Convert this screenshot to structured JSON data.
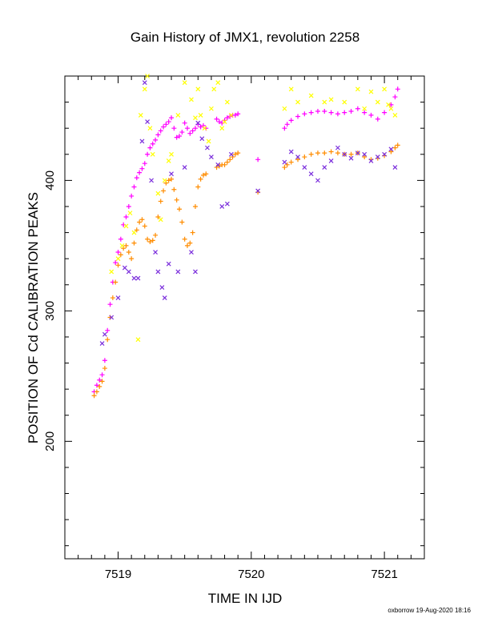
{
  "footer": "oxborrow 19-Aug-2020 18:16",
  "chart_data": {
    "type": "scatter",
    "title": "Gain History of JMX1, revolution 2258",
    "xlabel": "TIME IN IJD",
    "ylabel": "POSITION OF Cd CALIBRATION PEAKS",
    "xlim": [
      7518.6,
      7521.3
    ],
    "ylim": [
      110,
      480
    ],
    "xticks": [
      7519,
      7520,
      7521
    ],
    "yticks": [
      200,
      300,
      400
    ],
    "grid": false,
    "colors": {
      "magenta": "#ff00ff",
      "orange": "#ff8c00",
      "yellow": "#ffff00",
      "purple": "#7b2fdc"
    },
    "series": [
      {
        "color": "magenta",
        "marker": "plus",
        "x": [
          7518.82,
          7518.84,
          7518.86,
          7518.88,
          7518.9,
          7518.92,
          7518.94,
          7518.96,
          7518.98,
          7519.0,
          7519.02,
          7519.04,
          7519.06,
          7519.08,
          7519.1,
          7519.12,
          7519.14,
          7519.16,
          7519.18,
          7519.2,
          7519.22,
          7519.24,
          7519.26,
          7519.28,
          7519.3,
          7519.32,
          7519.34,
          7519.36,
          7519.38,
          7519.4,
          7519.42,
          7519.44,
          7519.46,
          7519.48,
          7519.5,
          7519.52,
          7519.54,
          7519.56,
          7519.58,
          7519.6,
          7519.62,
          7519.64,
          7519.66,
          7519.74,
          7519.76,
          7519.78,
          7519.8,
          7519.82,
          7519.84,
          7519.86,
          7519.88,
          7519.9,
          7520.05,
          7520.25,
          7520.27,
          7520.3,
          7520.35,
          7520.4,
          7520.45,
          7520.5,
          7520.55,
          7520.6,
          7520.65,
          7520.7,
          7520.75,
          7520.8,
          7520.85,
          7520.9,
          7520.95,
          7521.0,
          7521.05,
          7521.08,
          7521.1
        ],
        "y": [
          238,
          243,
          247,
          251,
          262,
          285,
          305,
          322,
          337,
          345,
          355,
          366,
          372,
          380,
          388,
          395,
          402,
          406,
          409,
          413,
          420,
          425,
          428,
          431,
          435,
          438,
          441,
          443,
          445,
          448,
          440,
          433,
          434,
          437,
          444,
          440,
          436,
          438,
          440,
          443,
          441,
          442,
          440,
          447,
          445,
          444,
          446,
          448,
          449,
          450,
          450,
          451,
          416,
          440,
          443,
          446,
          449,
          451,
          452,
          453,
          453,
          452,
          451,
          452,
          453,
          455,
          452,
          450,
          447,
          452,
          458,
          464,
          470
        ]
      },
      {
        "color": "orange",
        "marker": "plus",
        "x": [
          7518.82,
          7518.84,
          7518.86,
          7518.88,
          7518.9,
          7518.92,
          7518.94,
          7518.96,
          7518.98,
          7519.0,
          7519.02,
          7519.04,
          7519.06,
          7519.08,
          7519.1,
          7519.12,
          7519.14,
          7519.16,
          7519.18,
          7519.2,
          7519.22,
          7519.24,
          7519.26,
          7519.28,
          7519.3,
          7519.32,
          7519.34,
          7519.36,
          7519.38,
          7519.4,
          7519.42,
          7519.44,
          7519.46,
          7519.48,
          7519.5,
          7519.52,
          7519.54,
          7519.56,
          7519.58,
          7519.6,
          7519.62,
          7519.64,
          7519.66,
          7519.74,
          7519.76,
          7519.78,
          7519.8,
          7519.82,
          7519.84,
          7519.86,
          7519.88,
          7519.9,
          7520.05,
          7520.25,
          7520.27,
          7520.3,
          7520.35,
          7520.4,
          7520.45,
          7520.5,
          7520.55,
          7520.6,
          7520.65,
          7520.7,
          7520.75,
          7520.8,
          7520.85,
          7520.9,
          7520.95,
          7521.0,
          7521.05,
          7521.08,
          7521.1
        ],
        "y": [
          235,
          238,
          242,
          246,
          256,
          278,
          295,
          310,
          322,
          335,
          343,
          348,
          350,
          345,
          340,
          352,
          362,
          368,
          370,
          365,
          355,
          353,
          354,
          358,
          372,
          384,
          392,
          398,
          400,
          401,
          393,
          385,
          378,
          368,
          355,
          350,
          352,
          360,
          380,
          395,
          401,
          404,
          405,
          410,
          411,
          412,
          412,
          414,
          416,
          418,
          420,
          421,
          391,
          410,
          412,
          414,
          416,
          418,
          420,
          421,
          421,
          422,
          421,
          420,
          420,
          421,
          418,
          416,
          417,
          419,
          422,
          425,
          427
        ]
      },
      {
        "color": "yellow",
        "marker": "cross",
        "x": [
          7518.95,
          7519.0,
          7519.03,
          7519.06,
          7519.09,
          7519.12,
          7519.15,
          7519.17,
          7519.2,
          7519.22,
          7519.24,
          7519.26,
          7519.3,
          7519.32,
          7519.35,
          7519.38,
          7519.4,
          7519.45,
          7519.5,
          7519.55,
          7519.58,
          7519.6,
          7519.62,
          7519.65,
          7519.68,
          7519.7,
          7519.72,
          7519.75,
          7519.78,
          7519.8,
          7519.82,
          7519.85,
          7520.25,
          7520.3,
          7520.35,
          7520.45,
          7520.55,
          7520.6,
          7520.7,
          7520.8,
          7520.85,
          7520.9,
          7520.95,
          7521.0,
          7521.03,
          7521.05,
          7521.08
        ],
        "y": [
          330,
          340,
          350,
          365,
          375,
          360,
          278,
          450,
          470,
          480,
          440,
          420,
          390,
          370,
          400,
          415,
          420,
          450,
          475,
          462,
          448,
          470,
          450,
          440,
          430,
          455,
          470,
          475,
          440,
          445,
          460,
          450,
          455,
          470,
          460,
          465,
          460,
          462,
          460,
          470,
          455,
          468,
          460,
          470,
          458,
          455,
          450
        ]
      },
      {
        "color": "purple",
        "marker": "cross",
        "x": [
          7518.88,
          7518.9,
          7518.95,
          7519.0,
          7519.05,
          7519.08,
          7519.12,
          7519.15,
          7519.18,
          7519.2,
          7519.22,
          7519.25,
          7519.28,
          7519.3,
          7519.33,
          7519.35,
          7519.38,
          7519.4,
          7519.45,
          7519.5,
          7519.55,
          7519.58,
          7519.6,
          7519.63,
          7519.67,
          7519.7,
          7519.75,
          7519.78,
          7519.82,
          7519.85,
          7520.05,
          7520.25,
          7520.3,
          7520.35,
          7520.4,
          7520.45,
          7520.5,
          7520.55,
          7520.6,
          7520.65,
          7520.7,
          7520.75,
          7520.8,
          7520.85,
          7520.9,
          7520.95,
          7521.0,
          7521.05,
          7521.08
        ],
        "y": [
          275,
          282,
          295,
          310,
          333,
          330,
          325,
          325,
          430,
          475,
          445,
          400,
          345,
          330,
          318,
          310,
          336,
          405,
          330,
          410,
          345,
          330,
          444,
          432,
          425,
          418,
          412,
          380,
          382,
          420,
          392,
          414,
          422,
          418,
          410,
          405,
          400,
          410,
          415,
          425,
          420,
          417,
          421,
          420,
          415,
          418,
          420,
          424,
          410
        ]
      }
    ]
  }
}
